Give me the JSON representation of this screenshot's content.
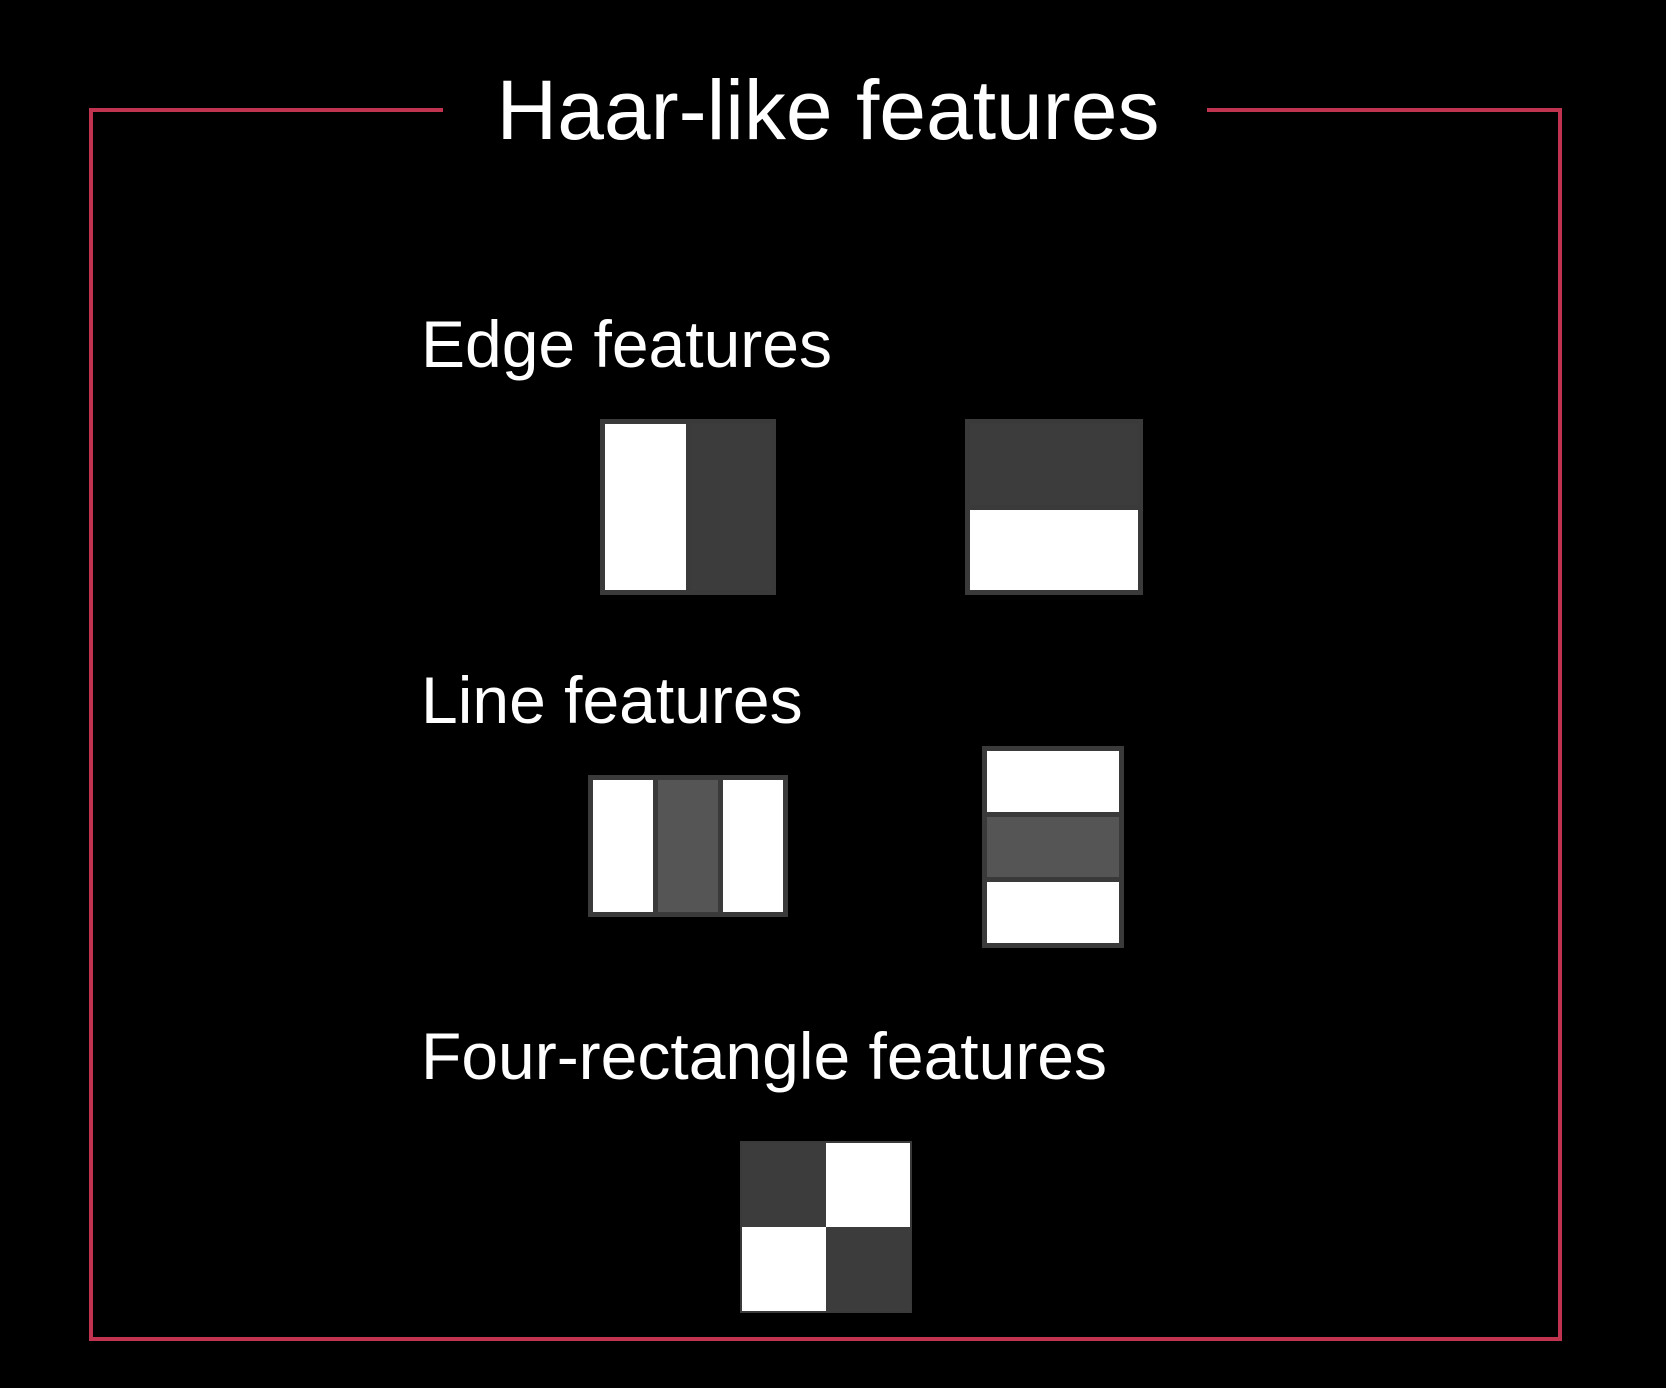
{
  "title": "Haar-like features",
  "colors": {
    "background": "#000000",
    "frame": "#c0344f",
    "text": "#ffffff",
    "border": "#3a3a3a",
    "white": "#ffffff",
    "dark": "#3c3c3c",
    "mid": "#555555"
  },
  "sections": {
    "edge": {
      "label": "Edge features",
      "features": [
        {
          "name": "vertical edge",
          "cells": [
            "white",
            "dark"
          ]
        },
        {
          "name": "horizontal edge",
          "cells": [
            "dark",
            "white"
          ]
        }
      ]
    },
    "line": {
      "label": "Line features",
      "features": [
        {
          "name": "vertical line",
          "cells": [
            "white",
            "mid",
            "white"
          ]
        },
        {
          "name": "horizontal line",
          "cells": [
            "white",
            "mid",
            "white"
          ]
        }
      ]
    },
    "four": {
      "label": "Four-rectangle features",
      "features": [
        {
          "name": "checkerboard",
          "cells": [
            "dark",
            "white",
            "white",
            "dark"
          ]
        }
      ]
    }
  }
}
